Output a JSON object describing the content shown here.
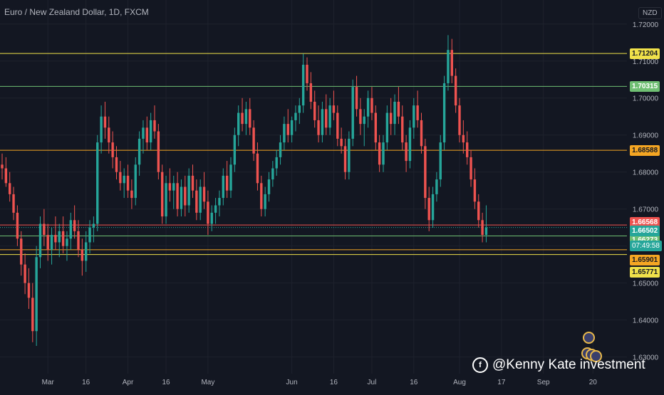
{
  "chart": {
    "title": "Euro / New Zealand Dollar, 1D, FXCM",
    "currency": "NZD",
    "countdown": "07:49:58"
  },
  "watermark": {
    "icon": "brand-logo-icon",
    "text": "@Kenny Kate investment"
  },
  "colors": {
    "background": "#131722",
    "grid": "#1e222d",
    "up": "#26a69a",
    "down": "#ef5350",
    "axis_text": "#b2b5be",
    "line_yellow": "#f0e14a",
    "line_green": "#6fbf73",
    "line_orange": "#f5a623",
    "line_red": "#ef5350"
  },
  "chart_data": {
    "type": "candlestick",
    "title": "Euro / New Zealand Dollar, 1D, FXCM",
    "y_unit": "NZD",
    "ylim": [
      1.6255,
      1.7265
    ],
    "y_ticks": [
      "1.72000",
      "1.71000",
      "1.70000",
      "1.69000",
      "1.68000",
      "1.67000",
      "1.66000",
      "1.65000",
      "1.64000",
      "1.63000"
    ],
    "x_ticks": [
      {
        "label": "Mar",
        "index": 12
      },
      {
        "label": "16",
        "index": 22
      },
      {
        "label": "Apr",
        "index": 33
      },
      {
        "label": "16",
        "index": 43
      },
      {
        "label": "May",
        "index": 54
      },
      {
        "label": "Jun",
        "index": 76
      },
      {
        "label": "16",
        "index": 87
      },
      {
        "label": "Jul",
        "index": 97
      },
      {
        "label": "16",
        "index": 108
      },
      {
        "label": "Aug",
        "index": 120
      },
      {
        "label": "17",
        "index": 131
      },
      {
        "label": "Sep",
        "index": 142
      },
      {
        "label": "20",
        "index": 155
      }
    ],
    "grid": true,
    "horizontal_levels": [
      {
        "value": 1.71204,
        "label": "1.71204",
        "color": "#f0e14a"
      },
      {
        "value": 1.70315,
        "label": "1.70315",
        "color": "#6fbf73"
      },
      {
        "value": 1.68588,
        "label": "1.68588",
        "color": "#f5a623"
      },
      {
        "value": 1.66568,
        "label": "1.66568",
        "color": "#ef5350"
      },
      {
        "value": 1.66273,
        "label": "1.66273",
        "color": "#6fbf73"
      },
      {
        "value": 1.65901,
        "label": "1.65901",
        "color": "#f5a623"
      },
      {
        "value": 1.65771,
        "label": "1.65771",
        "color": "#f0e14a"
      }
    ],
    "last_price": {
      "value": 1.66502,
      "label": "1.66502",
      "color": "#26a69a"
    },
    "candles_ohlc": [
      [
        1.682,
        1.685,
        1.678,
        1.681
      ],
      [
        1.681,
        1.684,
        1.676,
        1.677
      ],
      [
        1.677,
        1.68,
        1.672,
        1.674
      ],
      [
        1.674,
        1.676,
        1.667,
        1.669
      ],
      [
        1.669,
        1.671,
        1.66,
        1.662
      ],
      [
        1.662,
        1.664,
        1.652,
        1.655
      ],
      [
        1.655,
        1.658,
        1.647,
        1.65
      ],
      [
        1.65,
        1.654,
        1.643,
        1.646
      ],
      [
        1.646,
        1.65,
        1.634,
        1.637
      ],
      [
        1.637,
        1.66,
        1.633,
        1.657
      ],
      [
        1.657,
        1.668,
        1.654,
        1.666
      ],
      [
        1.666,
        1.67,
        1.66,
        1.663
      ],
      [
        1.663,
        1.666,
        1.656,
        1.659
      ],
      [
        1.659,
        1.665,
        1.655,
        1.663
      ],
      [
        1.663,
        1.668,
        1.659,
        1.661
      ],
      [
        1.661,
        1.666,
        1.657,
        1.664
      ],
      [
        1.664,
        1.668,
        1.658,
        1.66
      ],
      [
        1.66,
        1.664,
        1.656,
        1.662
      ],
      [
        1.662,
        1.669,
        1.659,
        1.667
      ],
      [
        1.667,
        1.671,
        1.662,
        1.664
      ],
      [
        1.664,
        1.667,
        1.657,
        1.659
      ],
      [
        1.659,
        1.662,
        1.652,
        1.656
      ],
      [
        1.656,
        1.664,
        1.653,
        1.661
      ],
      [
        1.661,
        1.667,
        1.658,
        1.665
      ],
      [
        1.665,
        1.668,
        1.661,
        1.666
      ],
      [
        1.666,
        1.69,
        1.664,
        1.688
      ],
      [
        1.688,
        1.698,
        1.685,
        1.695
      ],
      [
        1.695,
        1.699,
        1.689,
        1.692
      ],
      [
        1.692,
        1.695,
        1.685,
        1.688
      ],
      [
        1.688,
        1.691,
        1.681,
        1.684
      ],
      [
        1.684,
        1.687,
        1.678,
        1.68
      ],
      [
        1.68,
        1.683,
        1.675,
        1.677
      ],
      [
        1.677,
        1.681,
        1.673,
        1.679
      ],
      [
        1.679,
        1.682,
        1.673,
        1.675
      ],
      [
        1.675,
        1.678,
        1.67,
        1.673
      ],
      [
        1.673,
        1.684,
        1.671,
        1.682
      ],
      [
        1.682,
        1.691,
        1.679,
        1.689
      ],
      [
        1.689,
        1.694,
        1.685,
        1.692
      ],
      [
        1.692,
        1.695,
        1.686,
        1.688
      ],
      [
        1.688,
        1.696,
        1.686,
        1.694
      ],
      [
        1.694,
        1.698,
        1.689,
        1.691
      ],
      [
        1.691,
        1.693,
        1.678,
        1.68
      ],
      [
        1.68,
        1.682,
        1.666,
        1.668
      ],
      [
        1.668,
        1.679,
        1.666,
        1.677
      ],
      [
        1.677,
        1.681,
        1.672,
        1.675
      ],
      [
        1.675,
        1.679,
        1.67,
        1.677
      ],
      [
        1.677,
        1.68,
        1.668,
        1.67
      ],
      [
        1.67,
        1.678,
        1.668,
        1.676
      ],
      [
        1.676,
        1.679,
        1.668,
        1.671
      ],
      [
        1.671,
        1.681,
        1.669,
        1.679
      ],
      [
        1.679,
        1.682,
        1.673,
        1.675
      ],
      [
        1.675,
        1.678,
        1.667,
        1.669
      ],
      [
        1.669,
        1.678,
        1.667,
        1.676
      ],
      [
        1.676,
        1.68,
        1.67,
        1.672
      ],
      [
        1.672,
        1.675,
        1.663,
        1.666
      ],
      [
        1.666,
        1.671,
        1.664,
        1.669
      ],
      [
        1.669,
        1.673,
        1.666,
        1.671
      ],
      [
        1.671,
        1.675,
        1.668,
        1.673
      ],
      [
        1.673,
        1.681,
        1.671,
        1.679
      ],
      [
        1.679,
        1.683,
        1.673,
        1.675
      ],
      [
        1.675,
        1.684,
        1.673,
        1.682
      ],
      [
        1.682,
        1.692,
        1.68,
        1.69
      ],
      [
        1.69,
        1.698,
        1.687,
        1.696
      ],
      [
        1.696,
        1.7,
        1.691,
        1.693
      ],
      [
        1.693,
        1.699,
        1.69,
        1.697
      ],
      [
        1.697,
        1.7,
        1.69,
        1.692
      ],
      [
        1.692,
        1.694,
        1.683,
        1.685
      ],
      [
        1.685,
        1.688,
        1.675,
        1.677
      ],
      [
        1.677,
        1.679,
        1.668,
        1.67
      ],
      [
        1.67,
        1.676,
        1.668,
        1.674
      ],
      [
        1.674,
        1.68,
        1.672,
        1.678
      ],
      [
        1.678,
        1.683,
        1.676,
        1.681
      ],
      [
        1.681,
        1.686,
        1.679,
        1.684
      ],
      [
        1.684,
        1.69,
        1.682,
        1.688
      ],
      [
        1.688,
        1.695,
        1.686,
        1.693
      ],
      [
        1.693,
        1.697,
        1.688,
        1.69
      ],
      [
        1.69,
        1.695,
        1.688,
        1.694
      ],
      [
        1.694,
        1.698,
        1.691,
        1.696
      ],
      [
        1.696,
        1.7,
        1.693,
        1.698
      ],
      [
        1.698,
        1.712,
        1.696,
        1.709
      ],
      [
        1.709,
        1.711,
        1.702,
        1.704
      ],
      [
        1.704,
        1.707,
        1.697,
        1.699
      ],
      [
        1.699,
        1.702,
        1.692,
        1.694
      ],
      [
        1.694,
        1.698,
        1.688,
        1.69
      ],
      [
        1.69,
        1.699,
        1.688,
        1.697
      ],
      [
        1.697,
        1.701,
        1.69,
        1.692
      ],
      [
        1.692,
        1.7,
        1.69,
        1.698
      ],
      [
        1.698,
        1.702,
        1.694,
        1.696
      ],
      [
        1.696,
        1.698,
        1.687,
        1.689
      ],
      [
        1.689,
        1.692,
        1.685,
        1.687
      ],
      [
        1.687,
        1.689,
        1.678,
        1.68
      ],
      [
        1.68,
        1.691,
        1.678,
        1.689
      ],
      [
        1.689,
        1.705,
        1.687,
        1.703
      ],
      [
        1.703,
        1.706,
        1.695,
        1.697
      ],
      [
        1.697,
        1.7,
        1.69,
        1.693
      ],
      [
        1.693,
        1.697,
        1.687,
        1.695
      ],
      [
        1.695,
        1.702,
        1.692,
        1.7
      ],
      [
        1.7,
        1.703,
        1.694,
        1.696
      ],
      [
        1.696,
        1.698,
        1.686,
        1.688
      ],
      [
        1.688,
        1.69,
        1.68,
        1.682
      ],
      [
        1.682,
        1.69,
        1.68,
        1.688
      ],
      [
        1.688,
        1.698,
        1.686,
        1.696
      ],
      [
        1.696,
        1.7,
        1.69,
        1.693
      ],
      [
        1.693,
        1.701,
        1.69,
        1.699
      ],
      [
        1.699,
        1.703,
        1.693,
        1.695
      ],
      [
        1.695,
        1.698,
        1.686,
        1.688
      ],
      [
        1.688,
        1.69,
        1.68,
        1.683
      ],
      [
        1.683,
        1.694,
        1.681,
        1.692
      ],
      [
        1.692,
        1.7,
        1.689,
        1.698
      ],
      [
        1.698,
        1.702,
        1.692,
        1.694
      ],
      [
        1.694,
        1.696,
        1.685,
        1.687
      ],
      [
        1.687,
        1.689,
        1.67,
        1.673
      ],
      [
        1.673,
        1.676,
        1.664,
        1.667
      ],
      [
        1.667,
        1.676,
        1.665,
        1.674
      ],
      [
        1.674,
        1.68,
        1.672,
        1.678
      ],
      [
        1.678,
        1.69,
        1.676,
        1.688
      ],
      [
        1.688,
        1.706,
        1.686,
        1.704
      ],
      [
        1.704,
        1.717,
        1.702,
        1.713
      ],
      [
        1.713,
        1.716,
        1.704,
        1.706
      ],
      [
        1.706,
        1.708,
        1.696,
        1.698
      ],
      [
        1.698,
        1.7,
        1.688,
        1.69
      ],
      [
        1.69,
        1.694,
        1.685,
        1.688
      ],
      [
        1.688,
        1.691,
        1.682,
        1.684
      ],
      [
        1.684,
        1.686,
        1.676,
        1.678
      ],
      [
        1.678,
        1.681,
        1.67,
        1.672
      ],
      [
        1.672,
        1.674,
        1.665,
        1.667
      ],
      [
        1.667,
        1.669,
        1.661,
        1.663
      ],
      [
        1.663,
        1.671,
        1.661,
        1.665
      ]
    ]
  }
}
